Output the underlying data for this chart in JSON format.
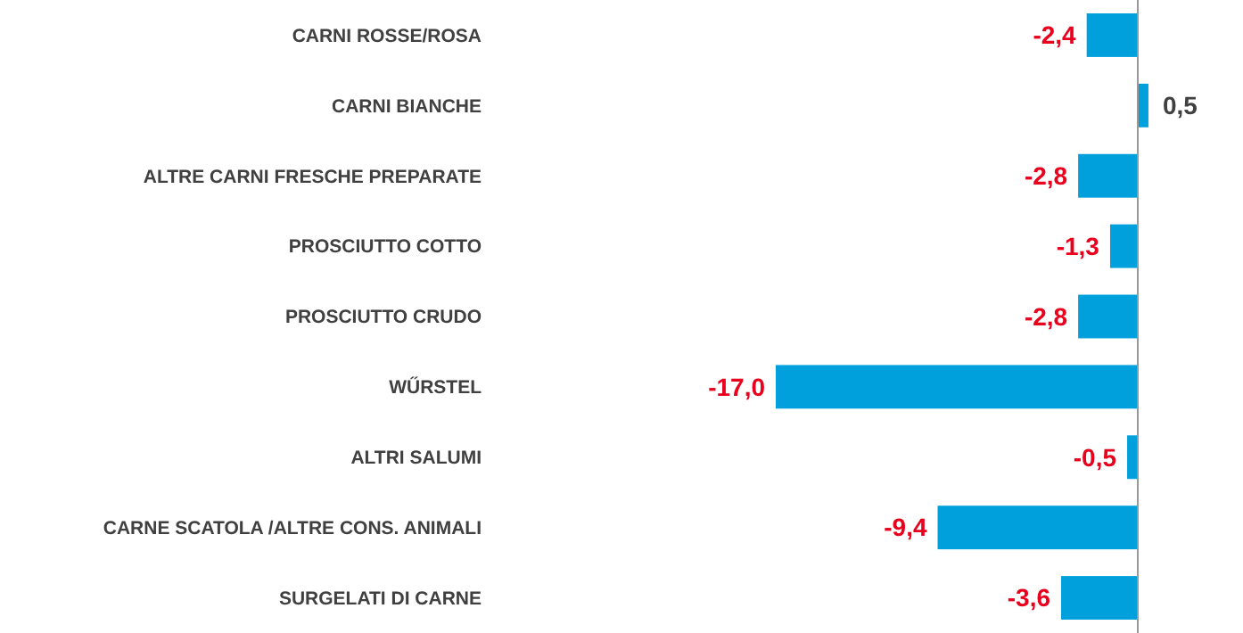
{
  "chart_data": {
    "type": "bar",
    "orientation": "horizontal",
    "categories": [
      "CARNI ROSSE/ROSA",
      "CARNI BIANCHE",
      "ALTRE CARNI FRESCHE PREPARATE",
      "PROSCIUTTO COTTO",
      "PROSCIUTTO CRUDO",
      "WŰRSTEL",
      "ALTRI SALUMI",
      "CARNE SCATOLA /ALTRE CONS. ANIMALI",
      "SURGELATI DI CARNE"
    ],
    "values": [
      -2.4,
      0.5,
      -2.8,
      -1.3,
      -2.8,
      -17.0,
      -0.5,
      -9.4,
      -3.6
    ],
    "value_labels": [
      "-2,4",
      "0,5",
      "-2,8",
      "-1,3",
      "-2,8",
      "-17,0",
      "-0,5",
      "-9,4",
      "-3,6"
    ],
    "color": "#00a0dc"
  }
}
